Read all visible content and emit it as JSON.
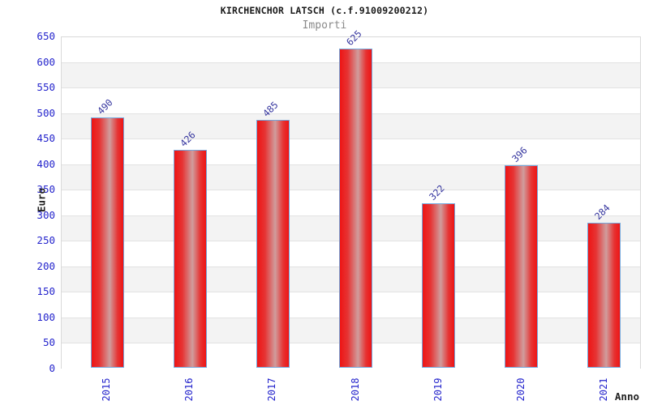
{
  "header": {
    "title": "KIRCHENCHOR LATSCH (c.f.91009200212)",
    "subtitle": "Importi"
  },
  "chart_data": {
    "type": "bar",
    "title": "KIRCHENCHOR LATSCH (c.f.91009200212)",
    "subtitle": "Importi",
    "categories": [
      "2015",
      "2016",
      "2017",
      "2018",
      "2019",
      "2020",
      "2021"
    ],
    "values": [
      490,
      426,
      485,
      625,
      322,
      396,
      284
    ],
    "xlabel": "Anno",
    "ylabel": "Euro",
    "ylim": [
      0,
      650
    ],
    "ytick_step": 50,
    "yticks": [
      0,
      50,
      100,
      150,
      200,
      250,
      300,
      350,
      400,
      450,
      500,
      550,
      600,
      650
    ],
    "grid": "horizontal-bands",
    "legend": "none",
    "colors": {
      "bar_fill_edge": "#ee1414",
      "bar_fill_inner": "#e63434",
      "bar_fill_mid": "#d09d9d",
      "bar_border": "#74a7dc",
      "tick_label": "#2424cc",
      "value_label": "#34349e",
      "band_light": "#ffffff",
      "band_dark": "#f3f3f3",
      "grid_line": "#e2e2e2",
      "plot_border": "#d9d9d9",
      "title_color": "#1a1a1a",
      "subtitle_color": "#8a8a8a",
      "axis_title_color": "#222222"
    }
  }
}
